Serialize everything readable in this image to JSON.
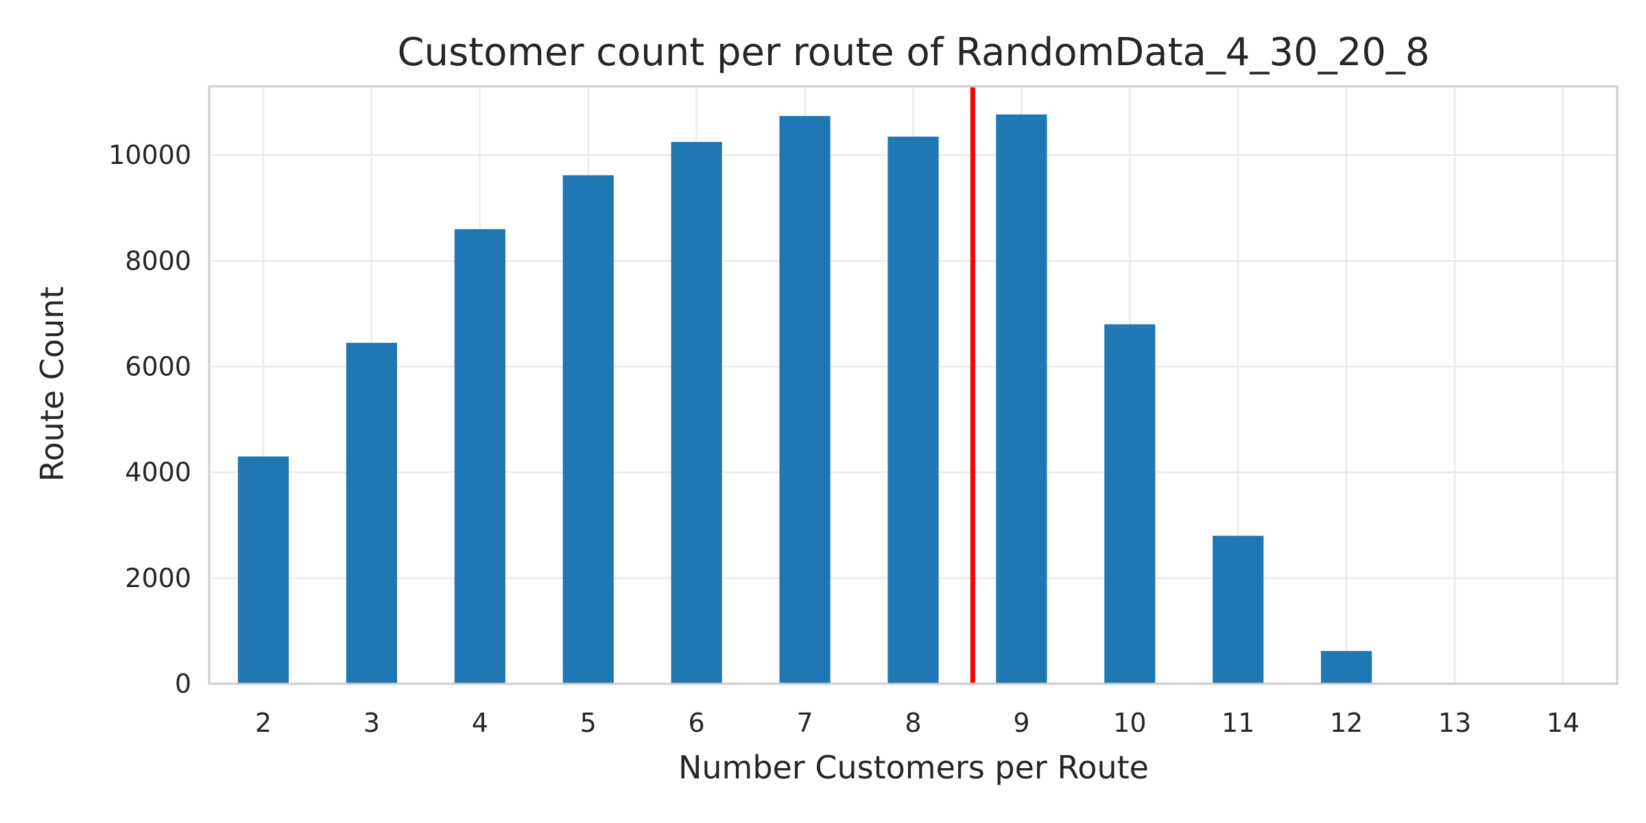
{
  "chart_data": {
    "type": "bar",
    "title": "Customer count per route of RandomData_4_30_20_8",
    "xlabel": "Number Customers per Route",
    "ylabel": "Route Count",
    "categories": [
      "2",
      "3",
      "4",
      "5",
      "6",
      "7",
      "8",
      "9",
      "10",
      "11",
      "12",
      "13",
      "14"
    ],
    "values": [
      4300,
      6450,
      8600,
      9620,
      10250,
      10740,
      10350,
      10770,
      6800,
      2800,
      620,
      0,
      0
    ],
    "ylim": [
      0,
      11300
    ],
    "yticks": [
      0,
      2000,
      4000,
      6000,
      8000,
      10000
    ],
    "grid": true,
    "mean_line_x": 8.55,
    "colors": {
      "bar": "#1f77b4",
      "mean_line": "#ff0000",
      "grid": "#ebebeb",
      "spine": "#cccccc"
    }
  }
}
